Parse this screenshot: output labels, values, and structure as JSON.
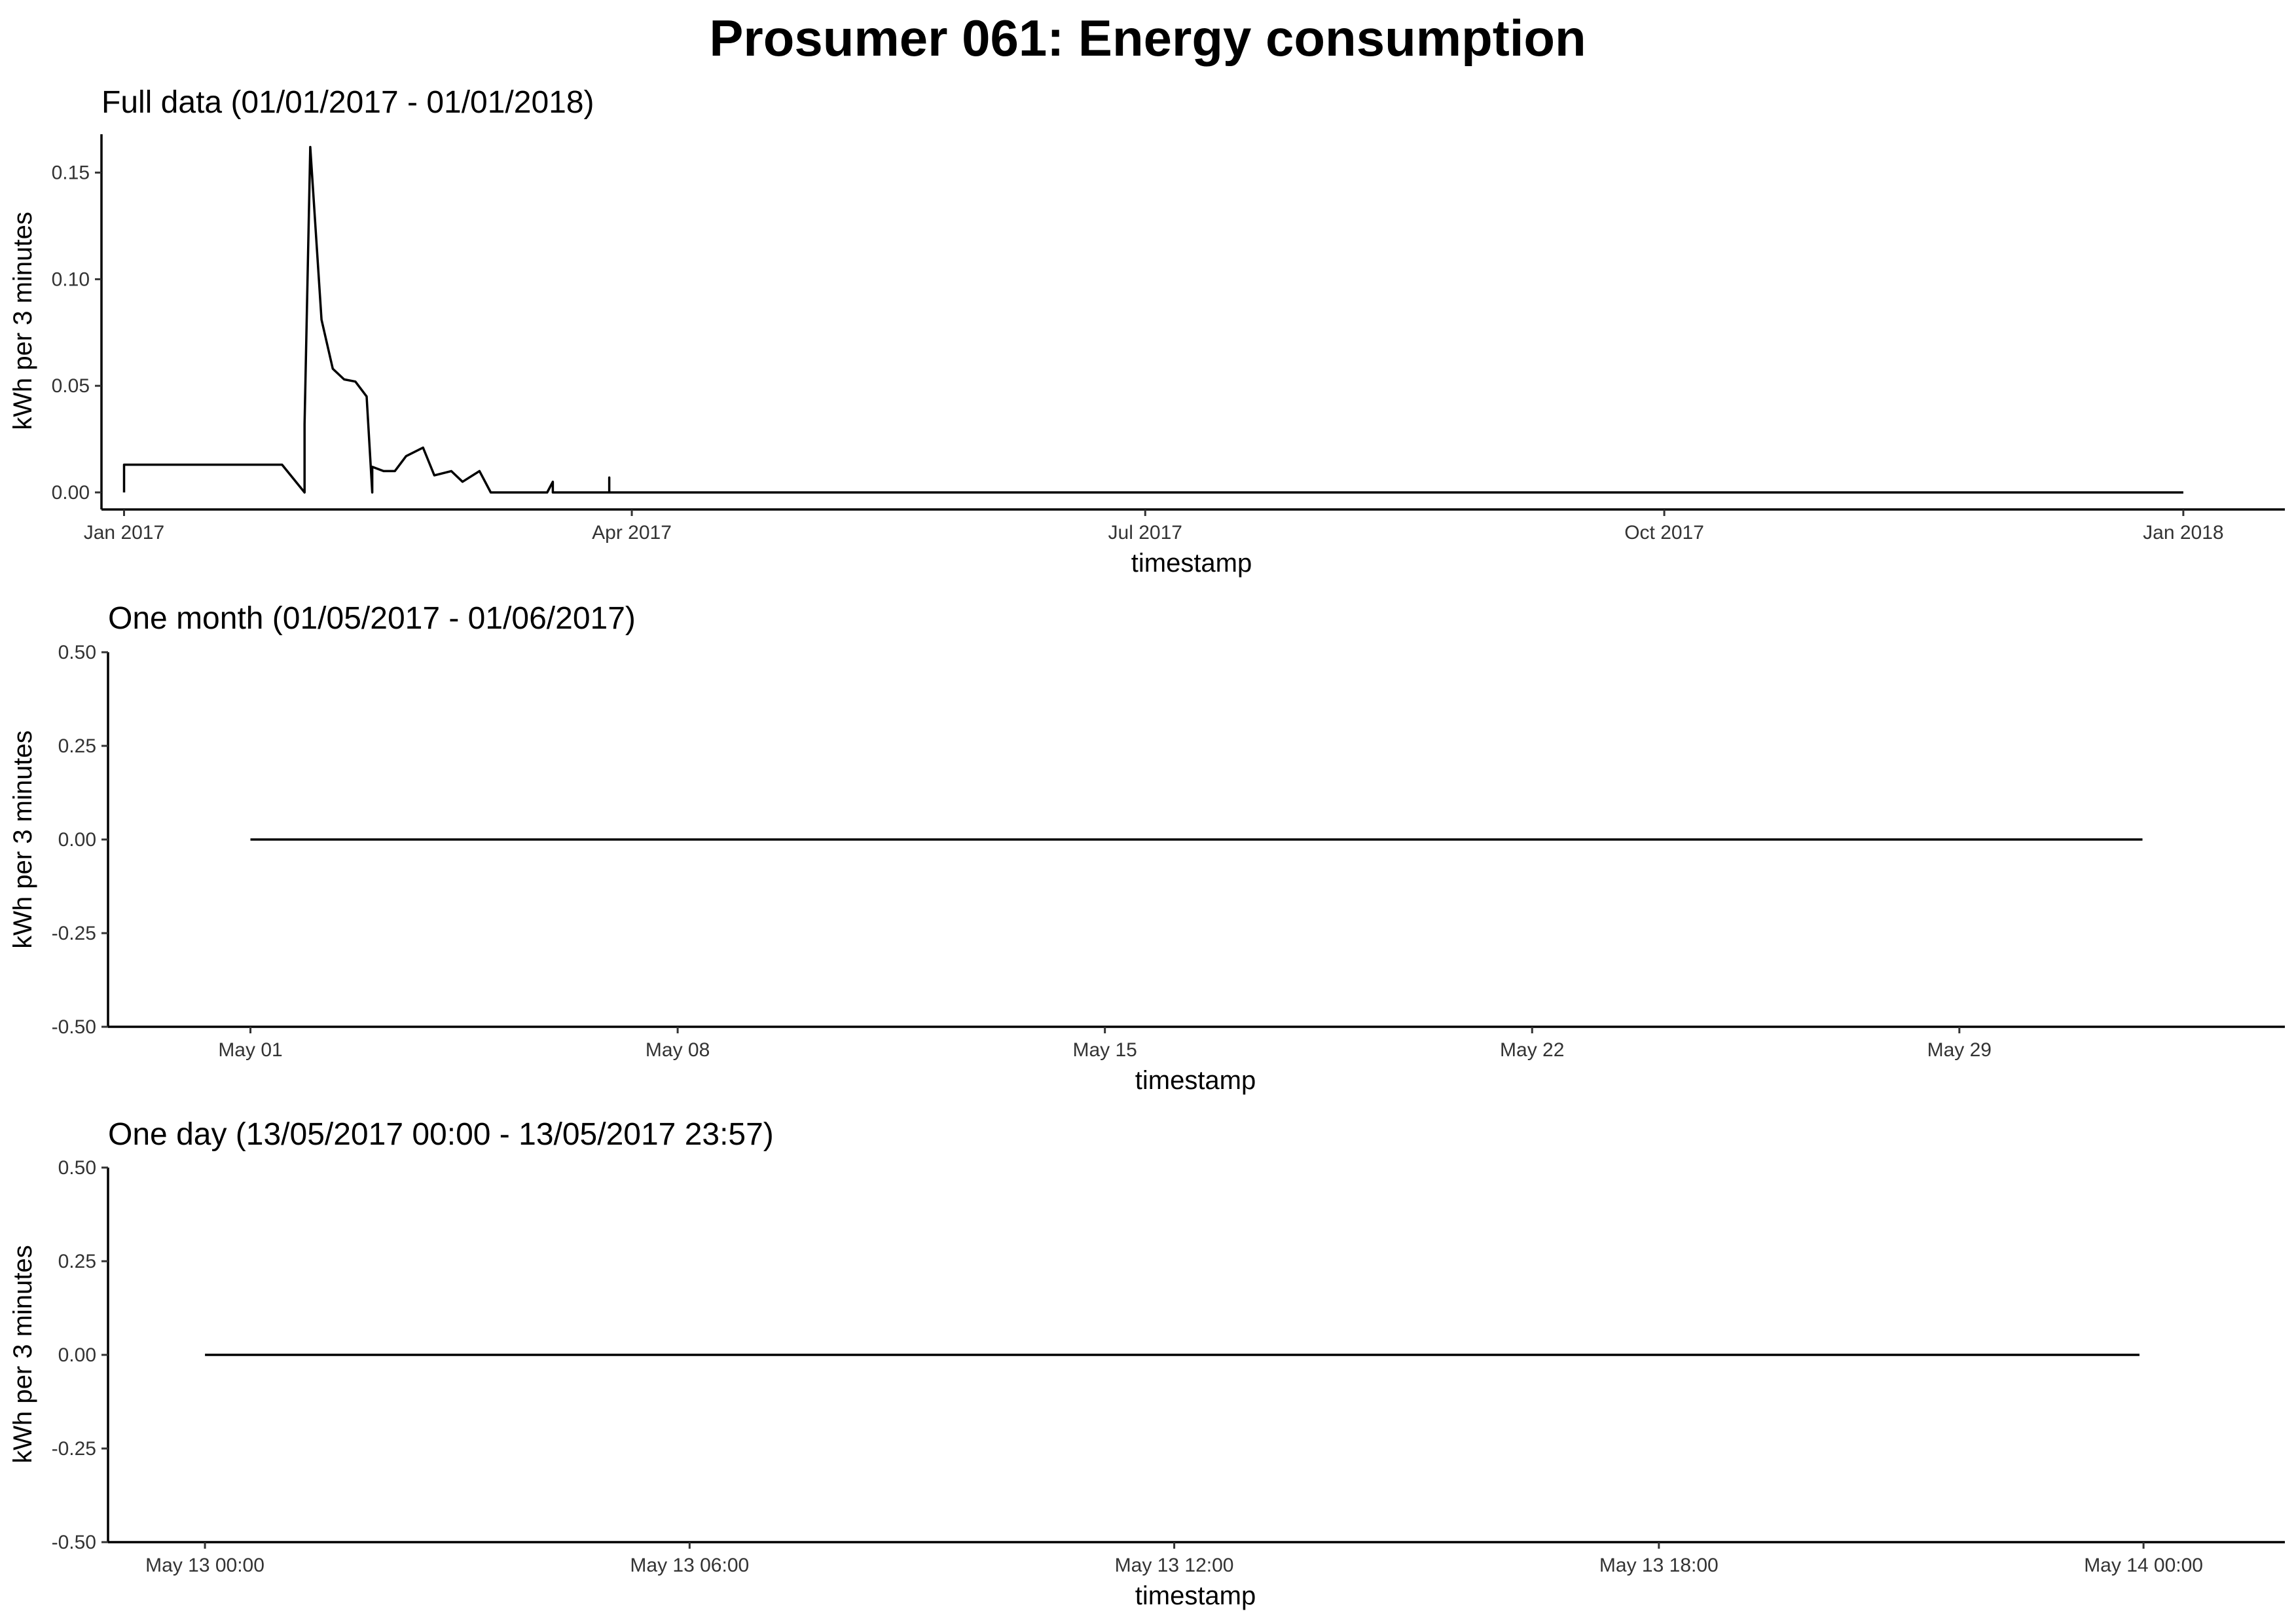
{
  "figure": {
    "title": "Prosumer 061: Energy consumption"
  },
  "chart_data": [
    {
      "type": "line",
      "title": "Full data (01/01/2017 - 01/01/2018)",
      "xlabel": "timestamp",
      "ylabel": "kWh per 3 minutes",
      "xlim": [
        "2016-12-28",
        "2018-01-19"
      ],
      "ylim": [
        -0.008,
        0.168
      ],
      "x_ticks": [
        {
          "value": "2017-01-01",
          "label": "Jan 2017"
        },
        {
          "value": "2017-04-01",
          "label": "Apr 2017"
        },
        {
          "value": "2017-07-01",
          "label": "Jul 2017"
        },
        {
          "value": "2017-10-01",
          "label": "Oct 2017"
        },
        {
          "value": "2018-01-01",
          "label": "Jan 2018"
        }
      ],
      "y_ticks": [
        {
          "value": 0.0,
          "label": "0.00"
        },
        {
          "value": 0.05,
          "label": "0.05"
        },
        {
          "value": 0.1,
          "label": "0.10"
        },
        {
          "value": 0.15,
          "label": "0.15"
        }
      ],
      "grid": false,
      "series": [
        {
          "x": [
            "2017-01-01",
            "2017-01-01",
            "2017-01-08",
            "2017-01-15",
            "2017-01-22",
            "2017-01-29",
            "2017-02-02",
            "2017-02-02",
            "2017-02-03",
            "2017-02-05",
            "2017-02-07",
            "2017-02-09",
            "2017-02-11",
            "2017-02-13",
            "2017-02-14",
            "2017-02-14",
            "2017-02-16",
            "2017-02-18",
            "2017-02-20",
            "2017-02-23",
            "2017-02-25",
            "2017-02-28",
            "2017-03-02",
            "2017-03-05",
            "2017-03-07",
            "2017-03-17",
            "2017-03-18",
            "2017-03-18",
            "2017-03-28",
            "2017-03-28",
            "2017-03-28",
            "2018-01-01"
          ],
          "y": [
            0.0,
            0.013,
            0.013,
            0.013,
            0.013,
            0.013,
            0.0,
            0.032,
            0.162,
            0.081,
            0.058,
            0.053,
            0.052,
            0.045,
            0.0,
            0.012,
            0.01,
            0.01,
            0.017,
            0.021,
            0.008,
            0.01,
            0.005,
            0.01,
            0.0,
            0.0,
            0.005,
            0.0,
            0.0,
            0.007,
            0.0,
            0.0
          ]
        }
      ]
    },
    {
      "type": "line",
      "title": "One month (01/05/2017 - 01/06/2017)",
      "xlabel": "timestamp",
      "ylabel": "kWh per 3 minutes",
      "xlim": [
        "2017-04-28T16:00",
        "2017-06-03T08:00"
      ],
      "ylim": [
        -0.5,
        0.5
      ],
      "x_ticks": [
        {
          "value": "2017-05-01",
          "label": "May 01"
        },
        {
          "value": "2017-05-08",
          "label": "May 08"
        },
        {
          "value": "2017-05-15",
          "label": "May 15"
        },
        {
          "value": "2017-05-22",
          "label": "May 22"
        },
        {
          "value": "2017-05-29",
          "label": "May 29"
        }
      ],
      "y_ticks": [
        {
          "value": -0.5,
          "label": "-0.50"
        },
        {
          "value": -0.25,
          "label": "-0.25"
        },
        {
          "value": 0.0,
          "label": "0.00"
        },
        {
          "value": 0.25,
          "label": "0.25"
        },
        {
          "value": 0.5,
          "label": "0.50"
        }
      ],
      "grid": false,
      "series": [
        {
          "x": [
            "2017-05-01T00:00",
            "2017-06-01T00:00"
          ],
          "y": [
            0.0,
            0.0
          ]
        }
      ]
    },
    {
      "type": "line",
      "title": "One day (13/05/2017 00:00 - 13/05/2017 23:57)",
      "xlabel": "timestamp",
      "ylabel": "kWh per 3 minutes",
      "xlim": [
        "2017-05-12T22:48",
        "2017-05-14T01:45"
      ],
      "ylim": [
        -0.5,
        0.5
      ],
      "x_ticks": [
        {
          "value": "2017-05-13T00:00",
          "label": "May 13 00:00"
        },
        {
          "value": "2017-05-13T06:00",
          "label": "May 13 06:00"
        },
        {
          "value": "2017-05-13T12:00",
          "label": "May 13 12:00"
        },
        {
          "value": "2017-05-13T18:00",
          "label": "May 13 18:00"
        },
        {
          "value": "2017-05-14T00:00",
          "label": "May 14 00:00"
        }
      ],
      "y_ticks": [
        {
          "value": -0.5,
          "label": "-0.50"
        },
        {
          "value": -0.25,
          "label": "-0.25"
        },
        {
          "value": 0.0,
          "label": "0.00"
        },
        {
          "value": 0.25,
          "label": "0.25"
        },
        {
          "value": 0.5,
          "label": "0.50"
        }
      ],
      "grid": false,
      "series": [
        {
          "x": [
            "2017-05-13T00:00",
            "2017-05-13T23:57"
          ],
          "y": [
            0.0,
            0.0
          ]
        }
      ]
    }
  ]
}
